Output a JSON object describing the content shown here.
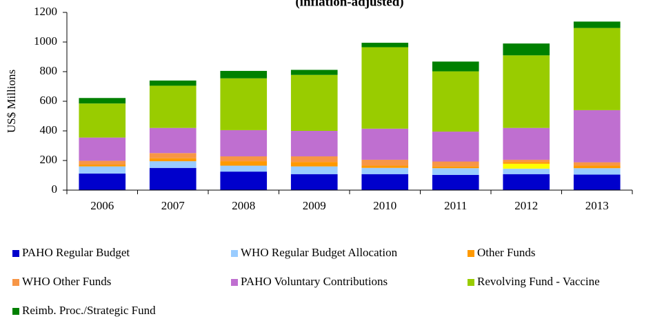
{
  "chart_data": {
    "type": "bar",
    "stacked": true,
    "title": "(inflation-adjusted)",
    "y_label": "US$ Millions",
    "categories": [
      "2006",
      "2007",
      "2008",
      "2009",
      "2010",
      "2011",
      "2012",
      "2013"
    ],
    "series": [
      {
        "name": "PAHO Regular Budget",
        "color": "#0000cc",
        "values": [
          112,
          150,
          125,
          108,
          108,
          103,
          108,
          105
        ]
      },
      {
        "name": "WHO Regular Budget Allocation",
        "color": "#99ccff",
        "values": [
          48,
          45,
          40,
          52,
          42,
          45,
          37,
          43
        ]
      },
      {
        "name": null,
        "color": "#ffff00",
        "values": [
          0,
          0,
          0,
          0,
          0,
          0,
          33,
          0
        ]
      },
      {
        "name": "Other Funds",
        "color": "#ff9900",
        "values": [
          12,
          20,
          30,
          30,
          15,
          12,
          12,
          17
        ]
      },
      {
        "name": "WHO Other Funds",
        "color": "#f79646",
        "values": [
          26,
          35,
          33,
          38,
          40,
          33,
          15,
          23
        ]
      },
      {
        "name": "PAHO Voluntary Contributions",
        "color": "#bf6fd0",
        "values": [
          157,
          170,
          177,
          172,
          210,
          202,
          215,
          352
        ]
      },
      {
        "name": "Revolving Fund - Vaccine",
        "color": "#99cc00",
        "values": [
          230,
          285,
          350,
          378,
          550,
          407,
          490,
          555
        ]
      },
      {
        "name": "Reimb. Proc./Strategic Fund",
        "color": "#008000",
        "values": [
          37,
          35,
          50,
          34,
          30,
          66,
          80,
          43
        ]
      }
    ],
    "ylim": [
      0,
      1200
    ],
    "yticks": [
      0,
      200,
      400,
      600,
      800,
      1000,
      1200
    ],
    "grid": false,
    "legend": "bottom"
  }
}
